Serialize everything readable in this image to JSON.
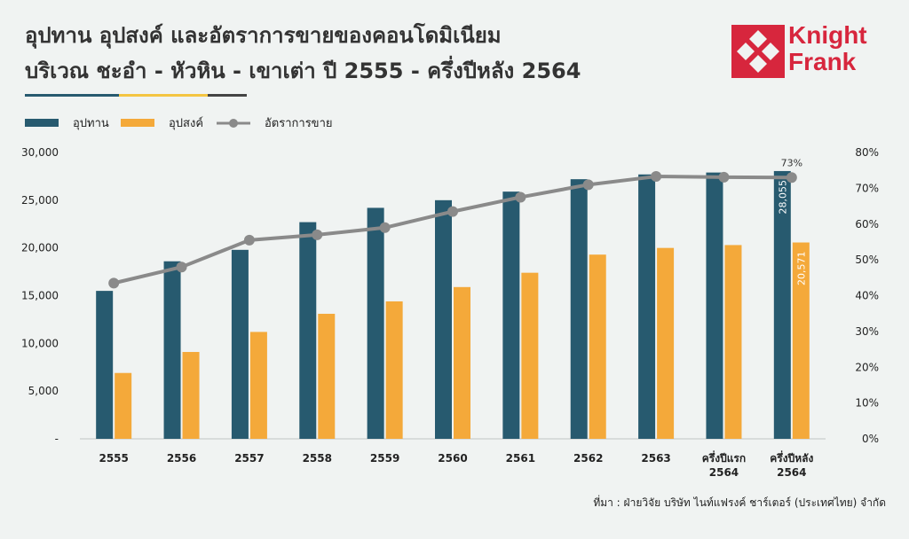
{
  "title": {
    "line1": "อุปทาน อุปสงค์ และอัตราการขายของคอนโดมิเนียม",
    "line2": "บริเวณ ชะอำ - หัวหิน - เขาเต่า ปี 2555 - ครึ่งปีหลัง 2564"
  },
  "brand": {
    "line1": "Knight",
    "line2": "Frank",
    "color": "#d7263d"
  },
  "source": "ที่มา : ฝ่ายวิจัย บริษัท ไนท์แฟรงค์ ชาร์เตอร์ (ประเทศไทย) จำกัด",
  "colors": {
    "supply": "#275a6f",
    "demand": "#f4a93a",
    "rate": "#8a8a8a",
    "background": "#f0f3f2"
  },
  "chart_data": {
    "type": "bar",
    "categories": [
      [
        "2555"
      ],
      [
        "2556"
      ],
      [
        "2557"
      ],
      [
        "2558"
      ],
      [
        "2559"
      ],
      [
        "2560"
      ],
      [
        "2561"
      ],
      [
        "2562"
      ],
      [
        "2563"
      ],
      [
        "ครึ่งปีแรก",
        "2564"
      ],
      [
        "ครึ่งปีหลัง",
        "2564"
      ]
    ],
    "series": [
      {
        "name": "อุปทาน",
        "kind": "bar",
        "axis": "left",
        "values": [
          15500,
          18600,
          19800,
          22700,
          24200,
          25000,
          25900,
          27200,
          27700,
          27900,
          28055
        ]
      },
      {
        "name": "อุปสงค์",
        "kind": "bar",
        "axis": "left",
        "values": [
          6900,
          9100,
          11200,
          13100,
          14400,
          15900,
          17400,
          19300,
          20000,
          20300,
          20571
        ]
      },
      {
        "name": "อัตราการขาย",
        "kind": "line",
        "axis": "right",
        "values": [
          43.5,
          48.0,
          55.5,
          57.0,
          59.0,
          63.5,
          67.5,
          71.0,
          73.3,
          73.1,
          73.0
        ]
      }
    ],
    "data_labels": {
      "supply_last": "28,055",
      "demand_last": "20,571",
      "rate_last": "73%"
    },
    "y_left": {
      "ylim": [
        0,
        30000
      ],
      "ticks": [
        "-",
        "5,000",
        "10,000",
        "15,000",
        "20,000",
        "25,000",
        "30,000"
      ]
    },
    "y_right": {
      "ylim": [
        0,
        80
      ],
      "ticks": [
        "0%",
        "10%",
        "20%",
        "30%",
        "40%",
        "50%",
        "60%",
        "70%",
        "80%"
      ]
    },
    "grid": false,
    "legend_position": "top-left"
  }
}
